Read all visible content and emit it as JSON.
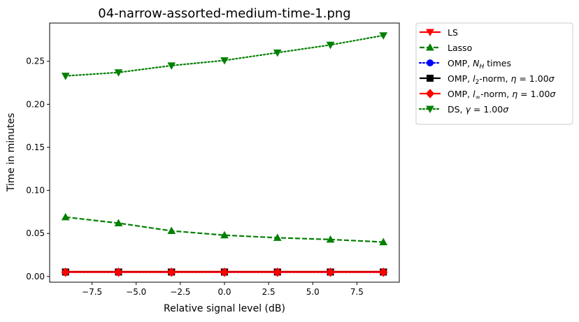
{
  "chart_data": {
    "type": "line",
    "title": "04-narrow-assorted-medium-time-1.png",
    "xlabel": "Relative signal level (dB)",
    "ylabel": "Time in minutes",
    "xlim": [
      -9.9,
      9.9
    ],
    "ylim": [
      -0.0066,
      0.2944
    ],
    "xticks": [
      -7.5,
      -5.0,
      -2.5,
      0.0,
      2.5,
      5.0,
      7.5
    ],
    "xtick_labels": [
      "−7.5",
      "−5.0",
      "−2.5",
      "0.0",
      "2.5",
      "5.0",
      "7.5"
    ],
    "yticks": [
      0.0,
      0.05,
      0.1,
      0.15,
      0.2,
      0.25
    ],
    "ytick_labels": [
      "0.00",
      "0.05",
      "0.10",
      "0.15",
      "0.20",
      "0.25"
    ],
    "grid": false,
    "legend_position": "outside-right-top",
    "x": [
      -9,
      -6,
      -3,
      0,
      3,
      6,
      9
    ],
    "series": [
      {
        "name": "LS",
        "color": "#ff0000",
        "linestyle": "solid",
        "marker": "triangle-down",
        "values": [
          0.0055,
          0.0055,
          0.0055,
          0.0055,
          0.0055,
          0.0055,
          0.0055
        ]
      },
      {
        "name": "Lasso",
        "color": "#008000",
        "linestyle": "dashed",
        "marker": "triangle-up",
        "values": [
          0.069,
          0.062,
          0.053,
          0.048,
          0.045,
          0.043,
          0.04
        ]
      },
      {
        "name": "OMP, N_H times",
        "color": "#0000ff",
        "linestyle": "dotted",
        "marker": "circle",
        "values": [
          0.005,
          0.005,
          0.005,
          0.005,
          0.005,
          0.005,
          0.005
        ]
      },
      {
        "name": "OMP, l2-norm, η = 1.00σ",
        "color": "#000000",
        "linestyle": "solid",
        "marker": "square",
        "values": [
          0.0052,
          0.0052,
          0.0052,
          0.0052,
          0.0052,
          0.0052,
          0.0052
        ]
      },
      {
        "name": "OMP, l∞-norm, η = 1.00σ",
        "color": "#ff0000",
        "linestyle": "solid",
        "marker": "diamond",
        "values": [
          0.005,
          0.005,
          0.005,
          0.005,
          0.005,
          0.005,
          0.005
        ]
      },
      {
        "name": "DS, γ = 1.00σ",
        "color": "#008000",
        "linestyle": "dotted",
        "marker": "triangle-down",
        "values": [
          0.233,
          0.237,
          0.245,
          0.251,
          0.26,
          0.269,
          0.28
        ]
      }
    ],
    "legend_labels": {
      "ls": "LS",
      "lasso": "Lasso",
      "omp_nh_a": "OMP, ",
      "omp_nh_b": "N",
      "omp_nh_sub": "H",
      "omp_nh_c": " times",
      "omp_l2_a": "OMP, ",
      "omp_l2_b": "l",
      "omp_l2_sub": "2",
      "omp_l2_c": "-norm, ",
      "omp_l2_d": "η",
      "omp_l2_e": " = 1.00",
      "omp_l2_f": "σ",
      "omp_linf_a": "OMP, ",
      "omp_linf_b": "l",
      "omp_linf_sub": "∞",
      "omp_linf_c": "-norm, ",
      "omp_linf_d": "η",
      "omp_linf_e": " = 1.00",
      "omp_linf_f": "σ",
      "ds_a": "DS, ",
      "ds_b": "γ",
      "ds_c": " = 1.00",
      "ds_d": "σ"
    }
  }
}
